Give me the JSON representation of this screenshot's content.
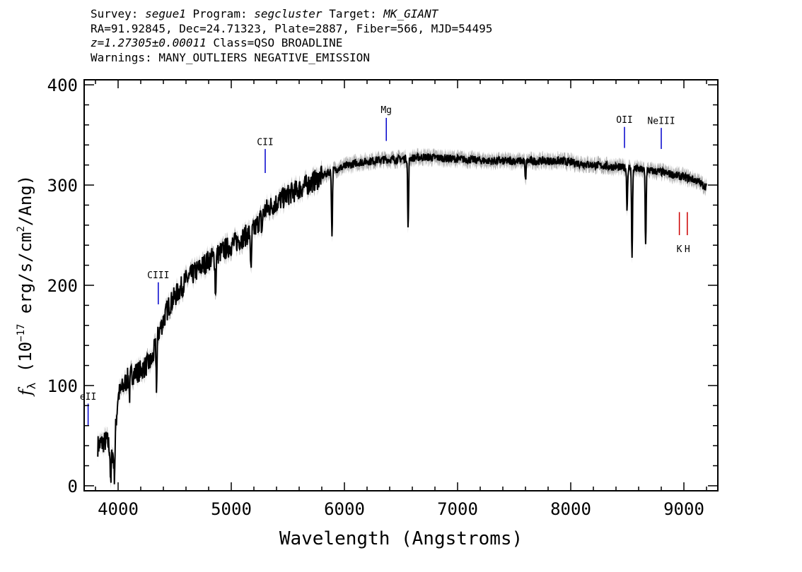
{
  "header": {
    "survey_label": "Survey:",
    "survey": "segue1",
    "program_label": "Program:",
    "program": "segcluster",
    "target_label": "Target:",
    "target": "MK_GIANT",
    "line2": "RA=91.92845, Dec=24.71323, Plate=2887, Fiber=566, MJD=54495",
    "redshift": "z=1.27305±0.00011",
    "class": "Class=QSO BROADLINE",
    "warnings": "Warnings: MANY_OUTLIERS NEGATIVE_EMISSION"
  },
  "chart_data": {
    "type": "line",
    "title": "",
    "xlabel": "Wavelength (Angstroms)",
    "ylabel_prefix": "f",
    "ylabel_sub": "λ",
    "ylabel_main": " (10",
    "ylabel_exp": "−17",
    "ylabel_units": " erg/s/cm",
    "ylabel_exp2": "2",
    "ylabel_end": "/Ang)",
    "xlim": [
      3700,
      9300
    ],
    "ylim": [
      -5,
      405
    ],
    "x_ticks": [
      4000,
      5000,
      6000,
      7000,
      8000,
      9000
    ],
    "x_tick_labels": [
      "4000",
      "5000",
      "6000",
      "7000",
      "8000",
      "9000"
    ],
    "y_ticks": [
      0,
      100,
      200,
      300,
      400
    ],
    "y_tick_labels": [
      "0",
      "100",
      "200",
      "300",
      "400"
    ],
    "series": [
      {
        "color": "#000000",
        "error_color": "#b0b0b0",
        "continuum": [
          [
            3820,
            40
          ],
          [
            3900,
            45
          ],
          [
            3960,
            30
          ],
          [
            4000,
            90
          ],
          [
            4100,
            110
          ],
          [
            4200,
            115
          ],
          [
            4300,
            125
          ],
          [
            4350,
            150
          ],
          [
            4450,
            180
          ],
          [
            4600,
            205
          ],
          [
            4800,
            225
          ],
          [
            5000,
            240
          ],
          [
            5200,
            255
          ],
          [
            5300,
            275
          ],
          [
            5500,
            290
          ],
          [
            5700,
            302
          ],
          [
            5900,
            315
          ],
          [
            6100,
            322
          ],
          [
            6300,
            325
          ],
          [
            6500,
            326
          ],
          [
            6700,
            328
          ],
          [
            7000,
            326
          ],
          [
            7300,
            324
          ],
          [
            7600,
            324
          ],
          [
            7900,
            324
          ],
          [
            8200,
            320
          ],
          [
            8500,
            317
          ],
          [
            8800,
            313
          ],
          [
            9000,
            308
          ],
          [
            9100,
            305
          ],
          [
            9200,
            298
          ]
        ],
        "absorption": [
          [
            3935,
            -38
          ],
          [
            3968,
            -30
          ],
          [
            4101,
            -20
          ],
          [
            4340,
            -45
          ],
          [
            4861,
            -40
          ],
          [
            5175,
            -45
          ],
          [
            5270,
            -15
          ],
          [
            5890,
            -65
          ],
          [
            6563,
            -70
          ],
          [
            7600,
            -20
          ],
          [
            8498,
            -40
          ],
          [
            8542,
            -90
          ],
          [
            8662,
            -75
          ]
        ]
      }
    ],
    "annotations": [
      {
        "label": "eII",
        "x": 3735,
        "color": "#0000cc",
        "y_top": 82,
        "y_bottom": 60,
        "label_y": 86
      },
      {
        "label": "CIII",
        "x": 4355,
        "color": "#0000cc",
        "y_top": 203,
        "y_bottom": 181,
        "label_y": 207
      },
      {
        "label": "CII",
        "x": 5300,
        "color": "#0000cc",
        "y_top": 336,
        "y_bottom": 312,
        "label_y": 340
      },
      {
        "label": "Mg",
        "x": 6370,
        "color": "#0000cc",
        "y_top": 367,
        "y_bottom": 344,
        "label_y": 372
      },
      {
        "label": "OII",
        "x": 8475,
        "color": "#0000cc",
        "y_top": 358,
        "y_bottom": 337,
        "label_y": 362
      },
      {
        "label": "NeIII",
        "x": 8800,
        "color": "#0000cc",
        "y_top": 357,
        "y_bottom": 336,
        "label_y": 361
      },
      {
        "label": "K",
        "x": 8960,
        "color": "#cc0000",
        "y_top": 273,
        "y_bottom": 250,
        "label_y": 233
      },
      {
        "label": "H",
        "x": 9030,
        "color": "#cc0000",
        "y_top": 273,
        "y_bottom": 250,
        "label_y": 233
      }
    ]
  }
}
